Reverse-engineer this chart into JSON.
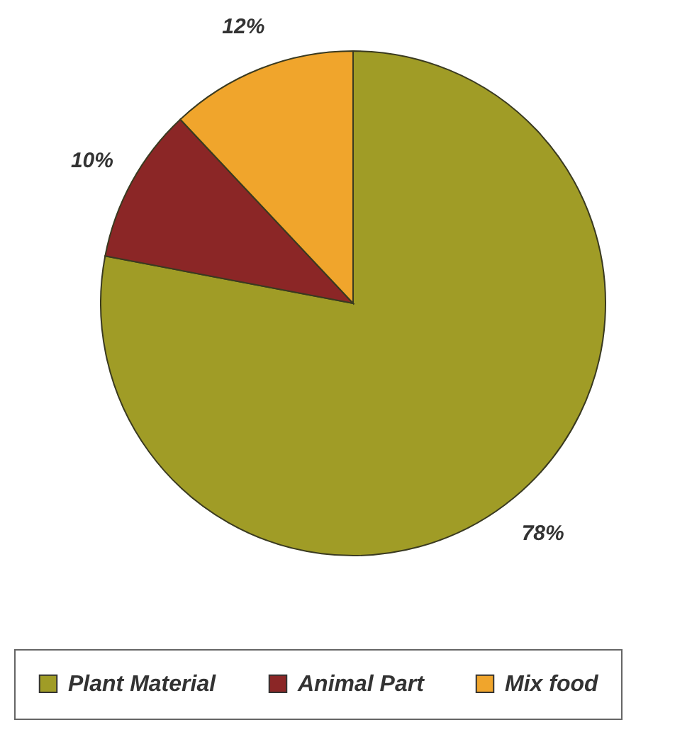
{
  "chart_data": {
    "type": "pie",
    "categories": [
      "Plant Material",
      "Animal Part",
      "Mix food"
    ],
    "values": [
      78,
      10,
      12
    ],
    "colors": [
      "#a09c26",
      "#8b2626",
      "#f0a52c"
    ],
    "value_labels": [
      "78%",
      "10%",
      "12%"
    ],
    "legend": "bottom"
  }
}
